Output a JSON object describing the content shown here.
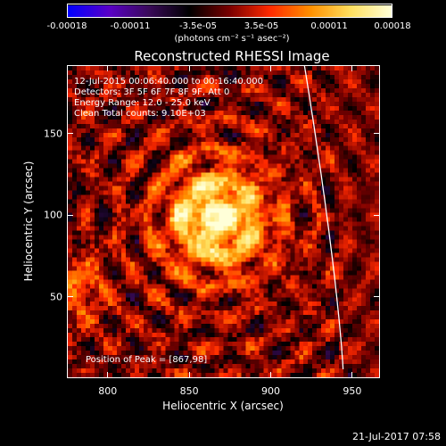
{
  "chart_data": {
    "type": "heatmap",
    "title": "Reconstructed RHESSI Image",
    "xlabel": "Heliocentric X (arcsec)",
    "ylabel": "Heliocentric Y (arcsec)",
    "xlim": [
      775,
      967
    ],
    "ylim": [
      0,
      192
    ],
    "x_ticks": [
      800,
      850,
      900,
      950
    ],
    "y_ticks": [
      50,
      100,
      150
    ],
    "colorbar": {
      "label": "(photons cm⁻² s⁻¹ asec⁻²)",
      "range": [
        -0.00018,
        0.00018
      ],
      "ticks": [
        -0.00018,
        -0.00011,
        -3.5e-05,
        3.5e-05,
        0.00011,
        0.00018
      ],
      "tick_labels": [
        "-0.00018",
        "-0.00011",
        "-3.5e-05",
        "3.5e-05",
        "0.00011",
        "0.00018"
      ],
      "colormap": [
        "#0000ff",
        "#5a00c8",
        "#3a0a5a",
        "#000000",
        "#7a0000",
        "#ff2a00",
        "#ff9000",
        "#ffe060",
        "#ffffd8"
      ]
    },
    "info_lines": [
      "12-Jul-2015 00:06:40.000 to 00:16:40.000",
      "Detectors: 3F 5F 6F 7F 8F 9F, Att 0",
      "Energy Range: 12.0 - 25.0 keV",
      "Clean    Total counts: 9.10E+03"
    ],
    "peak_label": "Position of Peak = [867,98]",
    "peak": [
      867,
      98
    ],
    "limb_color": "#ffffff"
  },
  "footer": "21-Jul-2017 07:58"
}
